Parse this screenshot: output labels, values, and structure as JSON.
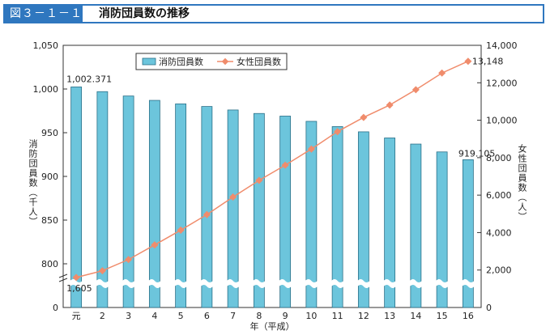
{
  "figure": {
    "label": "図３－１－１",
    "title": "消防団員数の推移"
  },
  "chart_data": {
    "type": "bar",
    "categories": [
      "元",
      "2",
      "3",
      "4",
      "5",
      "6",
      "7",
      "8",
      "9",
      "10",
      "11",
      "12",
      "13",
      "14",
      "15",
      "16"
    ],
    "series": [
      {
        "name": "消防団員数",
        "axis": "left",
        "chart": "bar",
        "color": "#6cc5dc",
        "values": [
          1002.371,
          997,
          992,
          987,
          983,
          980,
          976,
          972,
          969,
          963,
          957,
          951,
          944,
          937,
          928,
          919.105
        ]
      },
      {
        "name": "女性団員数",
        "axis": "right",
        "chart": "line",
        "color": "#f08c6c",
        "values": [
          1605,
          1960,
          2560,
          3340,
          4130,
          4960,
          5900,
          6790,
          7600,
          8460,
          9390,
          10150,
          10810,
          11630,
          12520,
          13148
        ]
      }
    ],
    "left_axis": {
      "label": "消防団員数（千人）",
      "ticks": [
        "0",
        "800",
        "850",
        "900",
        "950",
        "1,000",
        "1,050"
      ],
      "range": [
        0,
        1050
      ],
      "break_between": [
        0,
        800
      ]
    },
    "right_axis": {
      "label": "女性団員数（人）",
      "ticks": [
        "0",
        "2,000",
        "4,000",
        "6,000",
        "8,000",
        "10,000",
        "12,000",
        "14,000"
      ],
      "range": [
        0,
        14000
      ]
    },
    "xlabel": "年（平成）",
    "annotations": [
      "1,002.371",
      "919.105",
      "1,605",
      "13,148"
    ],
    "legend_position": "top-center"
  }
}
